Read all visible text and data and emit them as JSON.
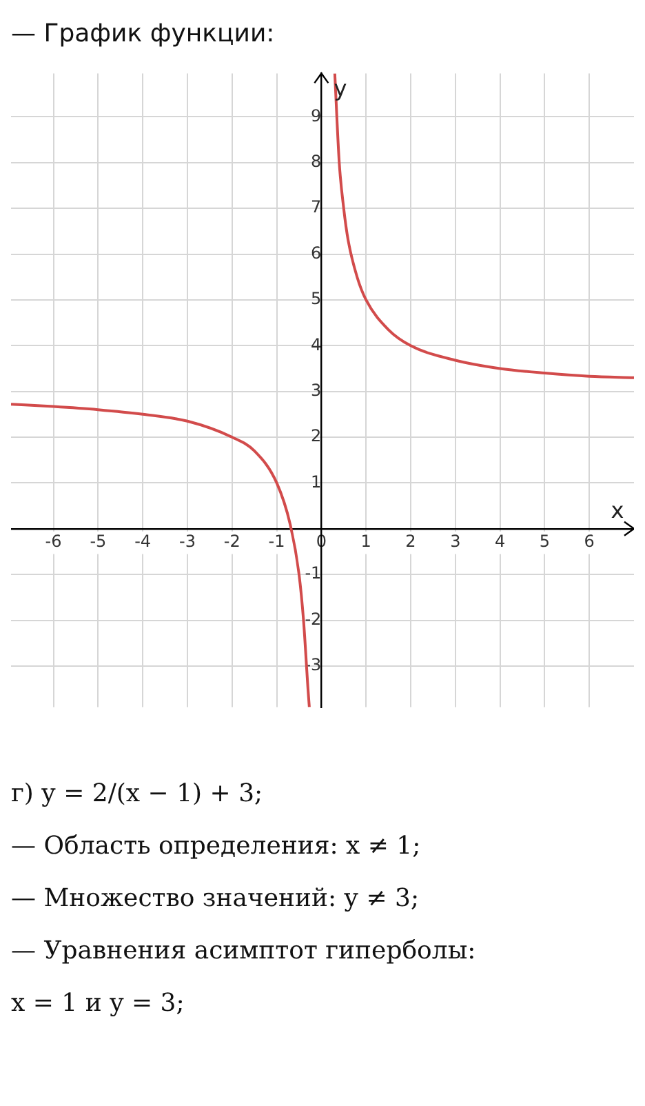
{
  "chart_data": {
    "type": "line",
    "title": "— График функции:",
    "xlabel": "x",
    "ylabel": "y",
    "series": [
      {
        "color": "#d24b4b",
        "x": [
          -6.95,
          -6,
          -5,
          -4,
          -3,
          -2,
          -1.5,
          -1,
          -0.7,
          -0.5,
          -0.4,
          -0.3,
          -0.27
        ],
        "values": [
          2.72,
          2.67,
          2.6,
          2.5,
          2.35,
          2,
          1.7,
          1,
          0.1,
          -1,
          -2,
          -3.5,
          -3.9
        ]
      },
      {
        "color": "#d24b4b",
        "x": [
          0.3,
          0.4,
          0.5,
          0.6,
          0.8,
          1,
          1.5,
          2,
          3,
          4,
          5,
          6,
          7
        ],
        "values": [
          9.95,
          8,
          7,
          6.3,
          5.5,
          5,
          4.35,
          4,
          3.68,
          3.5,
          3.4,
          3.33,
          3.3
        ]
      }
    ],
    "xlim": [
      -6.95,
      7
    ],
    "ylim": [
      -3.9,
      9.95
    ],
    "xticks": [
      -6,
      -5,
      -4,
      -3,
      -2,
      -1,
      0,
      1,
      2,
      3,
      4,
      5,
      6
    ],
    "yticks": [
      -3,
      -2,
      -1,
      {
        "value": 0,
        "label": null
      },
      1,
      2,
      3,
      4,
      5,
      6,
      7,
      8,
      9
    ],
    "grid": true,
    "marker": "none",
    "line_style": "solid",
    "annotations": [
      "г) y = 2/(x − 1) + 3;",
      "— Область определения:  x ≠ 1;",
      "— Множество значений:  y ≠ 3;",
      "— Уравнения асимптот гиперболы:",
      "x = 1  и  y = 3;"
    ]
  }
}
